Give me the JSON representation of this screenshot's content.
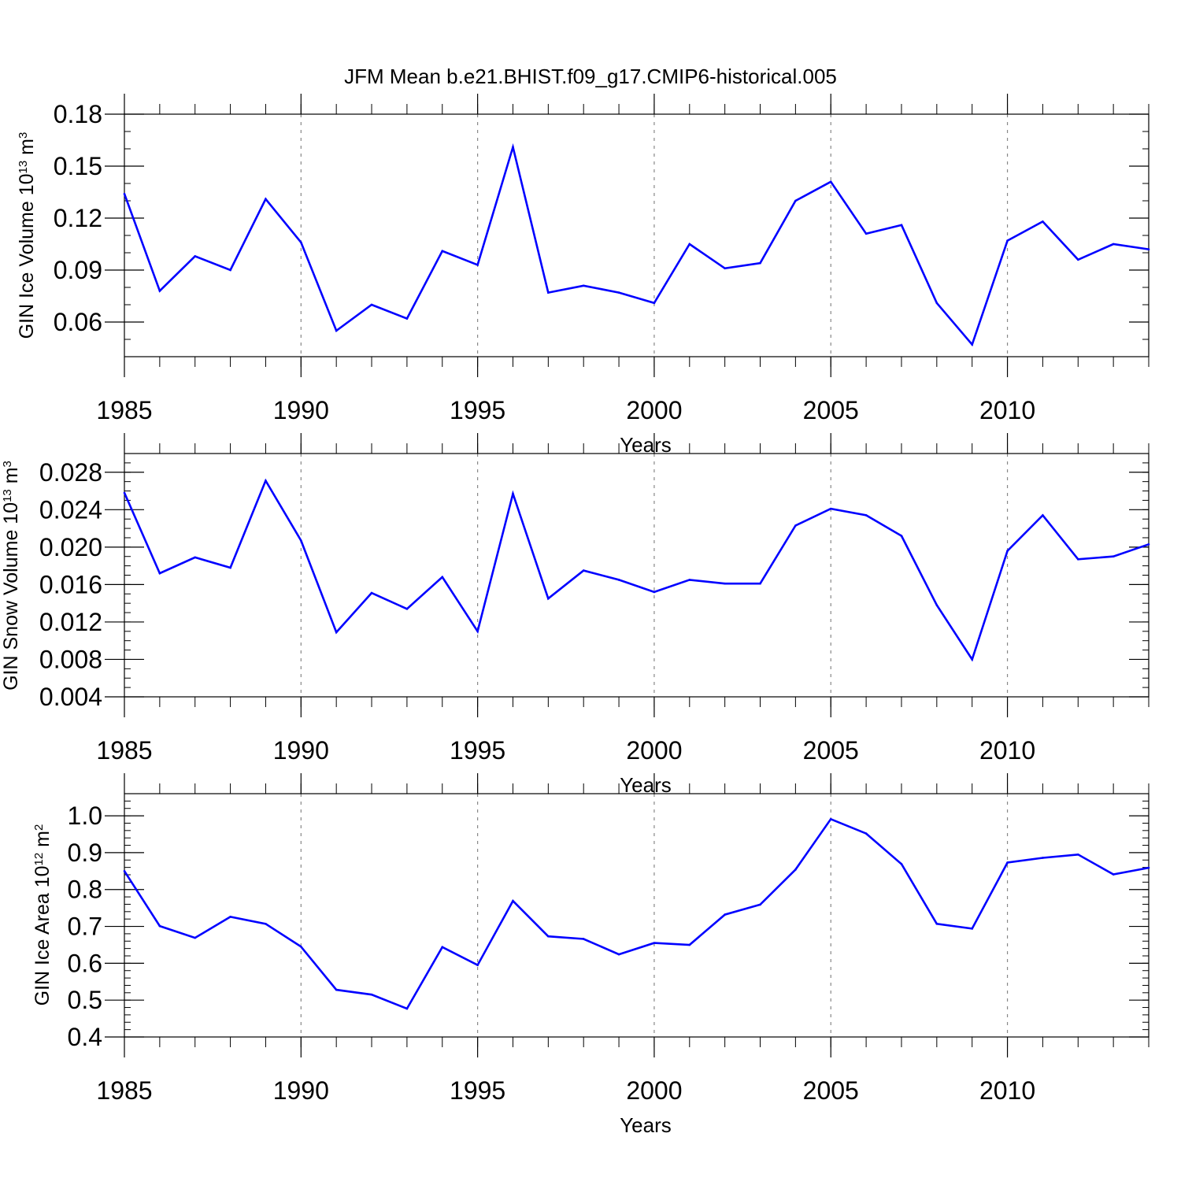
{
  "figure_title": "JFM Mean b.e21.BHIST.f09_g17.CMIP6-historical.005",
  "line_color": "#0000ff",
  "chart_data": [
    {
      "type": "line",
      "title": "JFM Mean b.e21.BHIST.f09_g17.CMIP6-historical.005",
      "xlabel": "Years",
      "ylabel": {
        "prefix": "GIN Ice Volume 10",
        "exp": "13",
        "mid": " m",
        "unit_exp": "3"
      },
      "xlim": [
        1985,
        2014
      ],
      "ylim": [
        0.04,
        0.18
      ],
      "yticks": [
        0.06,
        0.09,
        0.12,
        0.15,
        0.18
      ],
      "ytick_labels": [
        "0.06",
        "0.09",
        "0.12",
        "0.15",
        "0.18"
      ],
      "yminor_step": 0.01,
      "xticks": [
        1985,
        1990,
        1995,
        2000,
        2005,
        2010
      ],
      "xtick_labels": [
        "1985",
        "1990",
        "1995",
        "2000",
        "2005",
        "2010"
      ],
      "grid": "vertical dashed at major x ticks",
      "x": [
        1985,
        1986,
        1987,
        1988,
        1989,
        1990,
        1991,
        1992,
        1993,
        1994,
        1995,
        1996,
        1997,
        1998,
        1999,
        2000,
        2001,
        2002,
        2003,
        2004,
        2005,
        2006,
        2007,
        2008,
        2009,
        2010,
        2011,
        2012,
        2013,
        2014
      ],
      "series": [
        {
          "name": "GIN Ice Volume",
          "values": [
            0.134,
            0.078,
            0.098,
            0.09,
            0.131,
            0.106,
            0.055,
            0.07,
            0.062,
            0.101,
            0.093,
            0.161,
            0.077,
            0.081,
            0.077,
            0.071,
            0.105,
            0.091,
            0.094,
            0.13,
            0.141,
            0.111,
            0.116,
            0.071,
            0.047,
            0.107,
            0.118,
            0.096,
            0.105,
            0.102
          ]
        }
      ]
    },
    {
      "type": "line",
      "xlabel": "Years",
      "ylabel": {
        "prefix": "GIN Snow Volume 10",
        "exp": "13",
        "mid": " m",
        "unit_exp": "3"
      },
      "xlim": [
        1985,
        2014
      ],
      "ylim": [
        0.004,
        0.03
      ],
      "yticks": [
        0.004,
        0.008,
        0.012,
        0.016,
        0.02,
        0.024,
        0.028
      ],
      "ytick_labels": [
        "0.004",
        "0.008",
        "0.012",
        "0.016",
        "0.020",
        "0.024",
        "0.028"
      ],
      "yminor_step": 0.001,
      "xticks": [
        1985,
        1990,
        1995,
        2000,
        2005,
        2010
      ],
      "xtick_labels": [
        "1985",
        "1990",
        "1995",
        "2000",
        "2005",
        "2010"
      ],
      "grid": "vertical dashed at major x ticks",
      "x": [
        1985,
        1986,
        1987,
        1988,
        1989,
        1990,
        1991,
        1992,
        1993,
        1994,
        1995,
        1996,
        1997,
        1998,
        1999,
        2000,
        2001,
        2002,
        2003,
        2004,
        2005,
        2006,
        2007,
        2008,
        2009,
        2010,
        2011,
        2012,
        2013,
        2014
      ],
      "series": [
        {
          "name": "GIN Snow Volume",
          "values": [
            0.0258,
            0.0172,
            0.0189,
            0.0178,
            0.0271,
            0.0207,
            0.0109,
            0.0151,
            0.0134,
            0.0168,
            0.011,
            0.0257,
            0.0145,
            0.0175,
            0.0165,
            0.0152,
            0.0165,
            0.0161,
            0.0161,
            0.0223,
            0.0241,
            0.0234,
            0.0212,
            0.0138,
            0.008,
            0.0196,
            0.0234,
            0.0187,
            0.019,
            0.0203
          ]
        }
      ]
    },
    {
      "type": "line",
      "xlabel": "Years",
      "ylabel": {
        "prefix": "GIN Ice Area 10",
        "exp": "12",
        "mid": " m",
        "unit_exp": "2"
      },
      "xlim": [
        1985,
        2014
      ],
      "ylim": [
        0.4,
        1.06
      ],
      "yticks": [
        0.4,
        0.5,
        0.6,
        0.7,
        0.8,
        0.9,
        1.0
      ],
      "ytick_labels": [
        "0.4",
        "0.5",
        "0.6",
        "0.7",
        "0.8",
        "0.9",
        "1.0"
      ],
      "yminor_step": 0.02,
      "xticks": [
        1985,
        1990,
        1995,
        2000,
        2005,
        2010
      ],
      "xtick_labels": [
        "1985",
        "1990",
        "1995",
        "2000",
        "2005",
        "2010"
      ],
      "grid": "vertical dashed at major x ticks",
      "x": [
        1985,
        1986,
        1987,
        1988,
        1989,
        1990,
        1991,
        1992,
        1993,
        1994,
        1995,
        1996,
        1997,
        1998,
        1999,
        2000,
        2001,
        2002,
        2003,
        2004,
        2005,
        2006,
        2007,
        2008,
        2009,
        2010,
        2011,
        2012,
        2013,
        2014
      ],
      "series": [
        {
          "name": "GIN Ice Area",
          "values": [
            0.85,
            0.701,
            0.669,
            0.726,
            0.707,
            0.645,
            0.528,
            0.515,
            0.477,
            0.644,
            0.595,
            0.769,
            0.673,
            0.666,
            0.624,
            0.655,
            0.65,
            0.732,
            0.759,
            0.854,
            0.991,
            0.952,
            0.869,
            0.707,
            0.694,
            0.873,
            0.886,
            0.895,
            0.841,
            0.859
          ]
        }
      ]
    }
  ]
}
